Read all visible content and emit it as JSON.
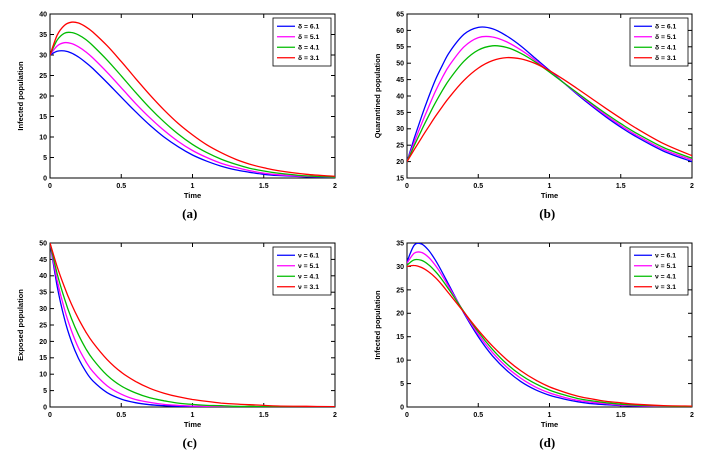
{
  "figure": {
    "background": "#ffffff",
    "text_color": "#000000",
    "axis_color": "#000000",
    "series_colors": [
      "#0000ff",
      "#ff00ff",
      "#00bb00",
      "#ff0000"
    ]
  },
  "chart_data": [
    {
      "type": "line",
      "caption": "(a)",
      "xlabel": "Time",
      "ylabel": "Infected population",
      "xlim": [
        0,
        2
      ],
      "ylim": [
        0,
        40
      ],
      "xticks": [
        0,
        0.5,
        1,
        1.5,
        2
      ],
      "yticks": [
        0,
        5,
        10,
        15,
        20,
        25,
        30,
        35,
        40
      ],
      "legend_position": "top-right",
      "grid": false,
      "x": [
        0,
        0.05,
        0.1,
        0.15,
        0.2,
        0.25,
        0.3,
        0.4,
        0.5,
        0.6,
        0.7,
        0.8,
        0.9,
        1,
        1.1,
        1.2,
        1.3,
        1.4,
        1.5,
        1.6,
        1.8,
        2
      ],
      "series": [
        {
          "name": "δ = 6.1",
          "color": "#0000ff",
          "values": [
            30,
            30.9,
            31,
            30.5,
            29.5,
            28.2,
            26.7,
            23.3,
            19.7,
            16.2,
            12.9,
            10,
            7.6,
            5.6,
            4.1,
            2.9,
            2,
            1.4,
            0.9,
            0.6,
            0.3,
            0.1
          ]
        },
        {
          "name": "δ = 5.1",
          "color": "#ff00ff",
          "values": [
            30,
            32.2,
            33,
            32.8,
            32,
            30.8,
            29.3,
            25.8,
            22,
            18.2,
            14.7,
            11.6,
            8.9,
            6.7,
            5,
            3.6,
            2.6,
            1.8,
            1.2,
            0.8,
            0.4,
            0.2
          ]
        },
        {
          "name": "δ = 4.1",
          "color": "#00bb00",
          "values": [
            30,
            33.6,
            35.3,
            35.5,
            34.9,
            33.8,
            32.3,
            28.8,
            24.9,
            20.9,
            17.1,
            13.7,
            10.7,
            8.2,
            6.2,
            4.6,
            3.4,
            2.4,
            1.7,
            1.2,
            0.5,
            0.2
          ]
        },
        {
          "name": "δ = 3.1",
          "color": "#ff0000",
          "values": [
            30,
            34.8,
            37.2,
            38,
            37.8,
            36.9,
            35.6,
            32.3,
            28.4,
            24.3,
            20.3,
            16.6,
            13.3,
            10.5,
            8.1,
            6.2,
            4.6,
            3.4,
            2.5,
            1.8,
            0.9,
            0.4
          ]
        }
      ]
    },
    {
      "type": "line",
      "caption": "(b)",
      "xlabel": "Time",
      "ylabel": "Quarantined population",
      "xlim": [
        0,
        2
      ],
      "ylim": [
        15,
        65
      ],
      "xticks": [
        0,
        0.5,
        1,
        1.5,
        2
      ],
      "yticks": [
        15,
        20,
        25,
        30,
        35,
        40,
        45,
        50,
        55,
        60,
        65
      ],
      "legend_position": "top-right",
      "grid": false,
      "x": [
        0,
        0.05,
        0.1,
        0.15,
        0.2,
        0.25,
        0.3,
        0.4,
        0.5,
        0.6,
        0.7,
        0.8,
        0.9,
        1,
        1.1,
        1.2,
        1.3,
        1.4,
        1.5,
        1.6,
        1.8,
        2
      ],
      "series": [
        {
          "name": "δ = 6.1",
          "color": "#0000ff",
          "values": [
            20,
            27,
            33.5,
            39.5,
            45,
            49.5,
            53.5,
            58.8,
            60.9,
            60.5,
            58.3,
            55.2,
            51.5,
            47.8,
            44,
            40.3,
            36.8,
            33.5,
            30.5,
            27.8,
            23.2,
            20
          ]
        },
        {
          "name": "δ = 5.1",
          "color": "#ff00ff",
          "values": [
            20,
            25.8,
            31.3,
            36.5,
            41.5,
            45.8,
            49.5,
            55,
            57.8,
            58,
            56.5,
            54,
            50.9,
            47.5,
            44,
            40.6,
            37.2,
            34,
            31,
            28.3,
            23.7,
            20.5
          ]
        },
        {
          "name": "δ = 4.1",
          "color": "#00bb00",
          "values": [
            20,
            24.8,
            29.4,
            33.8,
            38,
            41.8,
            45.2,
            50.6,
            54,
            55.3,
            54.8,
            53,
            50.4,
            47.3,
            44,
            40.8,
            37.6,
            34.5,
            31.6,
            28.9,
            24.3,
            21
          ]
        },
        {
          "name": "δ = 3.1",
          "color": "#ff0000",
          "values": [
            20,
            23.6,
            27.1,
            30.5,
            33.8,
            36.9,
            39.8,
            44.8,
            48.5,
            50.8,
            51.7,
            51.3,
            49.9,
            47.7,
            45,
            42.1,
            39.1,
            36.1,
            33.2,
            30.4,
            25.5,
            21.8
          ]
        }
      ]
    },
    {
      "type": "line",
      "caption": "(c)",
      "xlabel": "Time",
      "ylabel": "Exposed population",
      "xlim": [
        0,
        2
      ],
      "ylim": [
        0,
        50
      ],
      "xticks": [
        0,
        0.5,
        1,
        1.5,
        2
      ],
      "yticks": [
        0,
        5,
        10,
        15,
        20,
        25,
        30,
        35,
        40,
        45,
        50
      ],
      "legend_position": "top-right",
      "grid": false,
      "x": [
        0,
        0.05,
        0.1,
        0.15,
        0.2,
        0.25,
        0.3,
        0.4,
        0.5,
        0.6,
        0.7,
        0.8,
        0.9,
        1,
        1.1,
        1.2,
        1.3,
        1.4,
        1.5,
        1.6,
        1.8,
        2
      ],
      "series": [
        {
          "name": "ν = 6.1",
          "color": "#0000ff",
          "values": [
            50,
            36.9,
            27.1,
            20,
            14.8,
            10.9,
            8,
            4.4,
            2.4,
            1.3,
            0.7,
            0.4,
            0.2,
            0.1,
            0.1,
            0,
            0,
            0,
            0,
            0,
            0,
            0
          ]
        },
        {
          "name": "ν = 5.1",
          "color": "#ff00ff",
          "values": [
            50,
            38.7,
            30,
            23.3,
            18,
            14,
            10.8,
            6.5,
            3.9,
            2.3,
            1.4,
            0.8,
            0.5,
            0.3,
            0.2,
            0.1,
            0.1,
            0,
            0,
            0,
            0,
            0
          ]
        },
        {
          "name": "ν = 4.1",
          "color": "#00bb00",
          "values": [
            50,
            40.7,
            33.2,
            27,
            22,
            17.9,
            14.6,
            9.7,
            6.4,
            4.3,
            2.8,
            1.9,
            1.2,
            0.8,
            0.5,
            0.4,
            0.2,
            0.2,
            0.1,
            0.1,
            0,
            0
          ]
        },
        {
          "name": "ν = 3.1",
          "color": "#ff0000",
          "values": [
            50,
            42.8,
            36.7,
            31.4,
            26.9,
            23,
            19.7,
            14.5,
            10.6,
            7.8,
            5.7,
            4.2,
            3.1,
            2.3,
            1.7,
            1.2,
            0.9,
            0.7,
            0.5,
            0.3,
            0.2,
            0.1
          ]
        }
      ]
    },
    {
      "type": "line",
      "caption": "(d)",
      "xlabel": "Time",
      "ylabel": "Infected population",
      "xlim": [
        0,
        2
      ],
      "ylim": [
        0,
        35
      ],
      "xticks": [
        0,
        0.5,
        1,
        1.5,
        2
      ],
      "yticks": [
        0,
        5,
        10,
        15,
        20,
        25,
        30,
        35
      ],
      "legend_position": "top-right",
      "grid": false,
      "x": [
        0,
        0.05,
        0.1,
        0.15,
        0.2,
        0.25,
        0.3,
        0.4,
        0.5,
        0.6,
        0.7,
        0.8,
        0.9,
        1,
        1.1,
        1.2,
        1.3,
        1.4,
        1.5,
        1.6,
        1.8,
        2
      ],
      "series": [
        {
          "name": "ν = 6.1",
          "color": "#0000ff",
          "values": [
            31,
            34.5,
            34.8,
            33.5,
            31.3,
            28.6,
            25.7,
            20,
            15,
            10.9,
            7.8,
            5.4,
            3.7,
            2.5,
            1.7,
            1.1,
            0.7,
            0.5,
            0.3,
            0.2,
            0.1,
            0
          ]
        },
        {
          "name": "ν = 5.1",
          "color": "#ff00ff",
          "values": [
            30.7,
            32.8,
            33,
            32,
            30.2,
            27.9,
            25.3,
            20.2,
            15.5,
            11.6,
            8.5,
            6.1,
            4.3,
            3,
            2.1,
            1.4,
            1,
            0.7,
            0.4,
            0.3,
            0.1,
            0
          ]
        },
        {
          "name": "ν = 4.1",
          "color": "#00bb00",
          "values": [
            30.3,
            31.4,
            31.3,
            30.4,
            28.9,
            27,
            24.8,
            20.3,
            16,
            12.3,
            9.2,
            6.8,
            5,
            3.6,
            2.6,
            1.8,
            1.3,
            0.9,
            0.6,
            0.4,
            0.2,
            0.1
          ]
        },
        {
          "name": "ν = 3.1",
          "color": "#ff0000",
          "values": [
            30,
            30.2,
            29.8,
            28.9,
            27.6,
            25.9,
            24,
            20.2,
            16.4,
            13,
            10.1,
            7.7,
            5.8,
            4.3,
            3.2,
            2.3,
            1.7,
            1.2,
            0.9,
            0.6,
            0.3,
            0.2
          ]
        }
      ]
    }
  ]
}
